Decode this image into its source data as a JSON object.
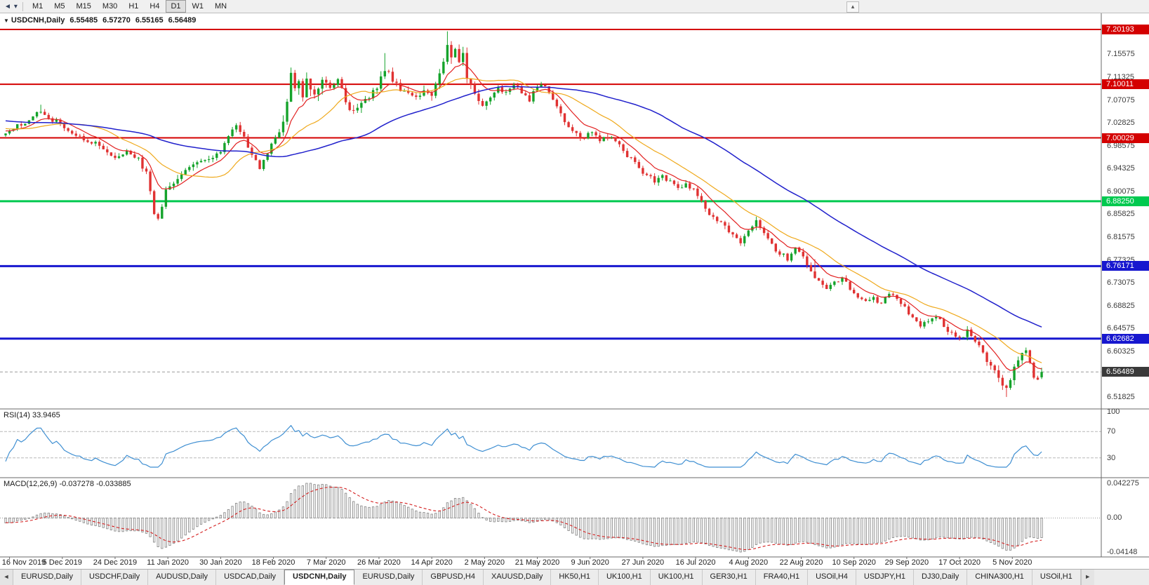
{
  "toolbar": {
    "chart_icon_glyph": "◄",
    "caret_glyph": "▾",
    "right_icon_glyph": "▴",
    "timeframes": [
      "M1",
      "M5",
      "M15",
      "M30",
      "H1",
      "H4",
      "D1",
      "W1",
      "MN"
    ],
    "active_timeframe": "D1"
  },
  "chart": {
    "marker_glyph": "▼",
    "symbol_period": "USDCNH,Daily",
    "open": "6.55485",
    "high": "6.57270",
    "low": "6.55165",
    "close": "6.56489"
  },
  "indicators": {
    "rsi_label": "RSI(14) 33.9465",
    "macd_label": "MACD(12,26,9) -0.037278 -0.033885"
  },
  "price_axis": {
    "ticks": [
      "7.15575",
      "7.11325",
      "7.07075",
      "7.02825",
      "6.98575",
      "6.94325",
      "6.90075",
      "6.85825",
      "6.81575",
      "6.77325",
      "6.73075",
      "6.68825",
      "6.64575",
      "6.60325",
      "6.56075",
      "6.51825"
    ]
  },
  "tabs": {
    "left_scroll_glyph": "◄",
    "right_scroll_glyph": "►",
    "active_index": 4,
    "items": [
      "EURUSD,Daily",
      "USDCHF,Daily",
      "AUDUSD,Daily",
      "USDCAD,Daily",
      "USDCNH,Daily",
      "EURUSD,Daily",
      "GBPUSD,H4",
      "XAUUSD,Daily",
      "HK50,H1",
      "UK100,H1",
      "UK100,H1",
      "GER30,H1",
      "FRA40,H1",
      "USOil,H4",
      "USDJPY,H1",
      "DJ30,Daily",
      "CHINA300,H1",
      "USOil,H1"
    ]
  },
  "chart_data": {
    "type": "candlestick",
    "symbol": "USDCNH",
    "period": "Daily",
    "title": "USDCNH,Daily",
    "candle_count": 266,
    "price_range": {
      "max": 7.232,
      "min": 6.496
    },
    "last_candle": {
      "open": 6.55485,
      "high": 6.5727,
      "low": 6.55165,
      "close": 6.56489
    },
    "x_labels": [
      "16 Nov 2019",
      "5 Dec 2019",
      "24 Dec 2019",
      "11 Jan 2020",
      "30 Jan 2020",
      "18 Feb 2020",
      "7 Mar 2020",
      "26 Mar 2020",
      "14 Apr 2020",
      "2 May 2020",
      "21 May 2020",
      "9 Jun 2020",
      "27 Jun 2020",
      "16 Jul 2020",
      "4 Aug 2020",
      "22 Aug 2020",
      "10 Sep 2020",
      "29 Sep 2020",
      "17 Oct 2020",
      "5 Nov 2020"
    ],
    "levels": [
      {
        "price": 7.20193,
        "label": "7.20193",
        "color": "#d40000",
        "width": 2,
        "kind": "resistance"
      },
      {
        "price": 7.10011,
        "label": "7.10011",
        "color": "#d40000",
        "width": 2,
        "kind": "resistance"
      },
      {
        "price": 7.00029,
        "label": "7.00029",
        "color": "#d40000",
        "width": 2,
        "kind": "resistance"
      },
      {
        "price": 6.8825,
        "label": "6.88250",
        "color": "#00c94f",
        "width": 3,
        "kind": "support"
      },
      {
        "price": 6.76171,
        "label": "6.76171",
        "color": "#1717cf",
        "width": 3,
        "kind": "support"
      },
      {
        "price": 6.62682,
        "label": "6.62682",
        "color": "#1717cf",
        "width": 3,
        "kind": "support"
      }
    ],
    "current_price": {
      "value": 6.56489,
      "label": "6.56489",
      "tag_color": "#3a3a3a"
    },
    "candle_colors": {
      "up": "#15a32b",
      "down": "#e03232"
    },
    "close_path_anchors": [
      [
        0,
        7.005
      ],
      [
        3,
        7.024
      ],
      [
        6,
        7.032
      ],
      [
        9,
        7.052
      ],
      [
        11,
        7.036
      ],
      [
        14,
        7.028
      ],
      [
        17,
        7.006
      ],
      [
        20,
        6.998
      ],
      [
        23,
        6.99
      ],
      [
        26,
        6.977
      ],
      [
        28,
        6.962
      ],
      [
        31,
        6.976
      ],
      [
        34,
        6.96
      ],
      [
        36,
        6.934
      ],
      [
        38,
        6.862
      ],
      [
        39,
        6.852
      ],
      [
        41,
        6.9
      ],
      [
        44,
        6.926
      ],
      [
        47,
        6.946
      ],
      [
        50,
        6.958
      ],
      [
        53,
        6.963
      ],
      [
        55,
        6.976
      ],
      [
        57,
        7.006
      ],
      [
        59,
        7.022
      ],
      [
        61,
        7.004
      ],
      [
        63,
        6.968
      ],
      [
        65,
        6.946
      ],
      [
        67,
        6.973
      ],
      [
        69,
        6.999
      ],
      [
        71,
        7.024
      ],
      [
        72,
        7.06
      ],
      [
        73,
        7.128
      ],
      [
        74,
        7.086
      ],
      [
        75,
        7.112
      ],
      [
        76,
        7.068
      ],
      [
        77,
        7.102
      ],
      [
        79,
        7.082
      ],
      [
        81,
        7.104
      ],
      [
        83,
        7.09
      ],
      [
        85,
        7.108
      ],
      [
        87,
        7.07
      ],
      [
        89,
        7.046
      ],
      [
        91,
        7.062
      ],
      [
        93,
        7.078
      ],
      [
        95,
        7.088
      ],
      [
        97,
        7.128
      ],
      [
        99,
        7.108
      ],
      [
        101,
        7.09
      ],
      [
        103,
        7.086
      ],
      [
        105,
        7.072
      ],
      [
        107,
        7.088
      ],
      [
        109,
        7.082
      ],
      [
        111,
        7.118
      ],
      [
        113,
        7.172
      ],
      [
        114,
        7.15
      ],
      [
        115,
        7.166
      ],
      [
        116,
        7.136
      ],
      [
        117,
        7.152
      ],
      [
        118,
        7.11
      ],
      [
        120,
        7.08
      ],
      [
        122,
        7.062
      ],
      [
        124,
        7.076
      ],
      [
        126,
        7.092
      ],
      [
        128,
        7.082
      ],
      [
        130,
        7.096
      ],
      [
        132,
        7.086
      ],
      [
        134,
        7.072
      ],
      [
        136,
        7.094
      ],
      [
        138,
        7.1
      ],
      [
        140,
        7.072
      ],
      [
        142,
        7.046
      ],
      [
        144,
        7.02
      ],
      [
        146,
        7.006
      ],
      [
        148,
        6.999
      ],
      [
        150,
        7.012
      ],
      [
        152,
        6.997
      ],
      [
        154,
        7.004
      ],
      [
        156,
        6.997
      ],
      [
        158,
        6.974
      ],
      [
        160,
        6.96
      ],
      [
        162,
        6.944
      ],
      [
        164,
        6.93
      ],
      [
        166,
        6.92
      ],
      [
        168,
        6.93
      ],
      [
        170,
        6.918
      ],
      [
        172,
        6.906
      ],
      [
        174,
        6.916
      ],
      [
        176,
        6.902
      ],
      [
        178,
        6.88
      ],
      [
        180,
        6.86
      ],
      [
        182,
        6.844
      ],
      [
        184,
        6.836
      ],
      [
        186,
        6.82
      ],
      [
        188,
        6.806
      ],
      [
        190,
        6.83
      ],
      [
        192,
        6.844
      ],
      [
        194,
        6.824
      ],
      [
        196,
        6.8
      ],
      [
        198,
        6.786
      ],
      [
        200,
        6.776
      ],
      [
        202,
        6.794
      ],
      [
        204,
        6.78
      ],
      [
        206,
        6.75
      ],
      [
        208,
        6.734
      ],
      [
        210,
        6.72
      ],
      [
        212,
        6.73
      ],
      [
        214,
        6.742
      ],
      [
        216,
        6.72
      ],
      [
        218,
        6.706
      ],
      [
        220,
        6.694
      ],
      [
        222,
        6.704
      ],
      [
        224,
        6.69
      ],
      [
        226,
        6.71
      ],
      [
        228,
        6.7
      ],
      [
        230,
        6.684
      ],
      [
        232,
        6.666
      ],
      [
        234,
        6.65
      ],
      [
        236,
        6.66
      ],
      [
        238,
        6.67
      ],
      [
        240,
        6.65
      ],
      [
        242,
        6.636
      ],
      [
        244,
        6.626
      ],
      [
        246,
        6.64
      ],
      [
        248,
        6.62
      ],
      [
        250,
        6.6
      ],
      [
        252,
        6.576
      ],
      [
        254,
        6.55
      ],
      [
        256,
        6.53
      ],
      [
        258,
        6.572
      ],
      [
        260,
        6.6
      ],
      [
        261,
        6.606
      ],
      [
        262,
        6.58
      ],
      [
        263,
        6.556
      ],
      [
        264,
        6.552
      ],
      [
        265,
        6.56489
      ]
    ],
    "volatility_anchors": [
      [
        0,
        0.011
      ],
      [
        35,
        0.012
      ],
      [
        40,
        0.016
      ],
      [
        55,
        0.011
      ],
      [
        70,
        0.012
      ],
      [
        72,
        0.032
      ],
      [
        78,
        0.026
      ],
      [
        84,
        0.016
      ],
      [
        96,
        0.02
      ],
      [
        100,
        0.014
      ],
      [
        110,
        0.02
      ],
      [
        113,
        0.026
      ],
      [
        118,
        0.02
      ],
      [
        124,
        0.013
      ],
      [
        150,
        0.011
      ],
      [
        175,
        0.012
      ],
      [
        185,
        0.013
      ],
      [
        205,
        0.012
      ],
      [
        230,
        0.01
      ],
      [
        248,
        0.012
      ],
      [
        253,
        0.018
      ],
      [
        257,
        0.02
      ],
      [
        260,
        0.015
      ],
      [
        263,
        0.012
      ],
      [
        265,
        0.01
      ]
    ],
    "spike_candles": [
      {
        "i": 9,
        "high": 7.062
      },
      {
        "i": 97,
        "high": 7.158
      },
      {
        "i": 113,
        "high": 7.1985
      },
      {
        "i": 207,
        "high": 6.7745
      },
      {
        "i": 256,
        "low": 6.5183
      }
    ],
    "moving_averages": [
      {
        "name": "fast",
        "method": "ema",
        "period": 9,
        "color": "#e22020",
        "width": 1.2
      },
      {
        "name": "mid",
        "method": "sma",
        "period": 20,
        "color": "#efa91c",
        "width": 1.2
      },
      {
        "name": "slow",
        "method": "sma",
        "period": 56,
        "color": "#2121cc",
        "width": 1.5
      }
    ],
    "rsi": {
      "period": 14,
      "value": 33.9465,
      "color": "#3f8fd2",
      "guide_levels": [
        70,
        30
      ],
      "axis_labels": [
        "100",
        "70",
        "30"
      ]
    },
    "macd": {
      "fast": 12,
      "slow": 26,
      "signal_period": 9,
      "value": -0.037278,
      "signal_value": -0.033885,
      "bar_color": "#8c8c8c",
      "signal_color": "#d42020",
      "axis_labels": [
        "0.042275",
        "0.00",
        "-0.04148"
      ],
      "axis_max": 0.042275,
      "axis_min": -0.04148
    }
  }
}
